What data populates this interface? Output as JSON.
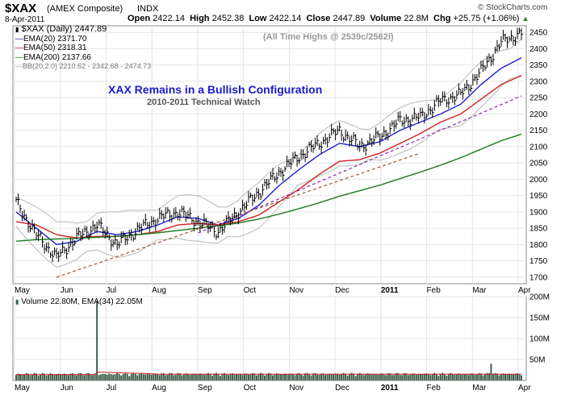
{
  "header": {
    "symbol": "$XAX",
    "name": "(AMEX Composite)",
    "exchange": "INDX",
    "date": "8-Apr-2011",
    "open_label": "Open",
    "open": "2422.14",
    "high_label": "High",
    "high": "2452.38",
    "low_label": "Low",
    "low": "2422.14",
    "close_label": "Close",
    "close": "2447.89",
    "volume_label": "Volume",
    "volume": "22.8M",
    "chg_label": "Chg",
    "chg": "+25.75 (+1.06%)",
    "watermark": "© StockCharts.com"
  },
  "legend": [
    {
      "text": "$XAX (Daily) 2447.89",
      "color": "#000000"
    },
    {
      "text": "EMA(20) 2371.70",
      "color": "#1f1fd0"
    },
    {
      "text": "EMA(50) 2318.31",
      "color": "#d01f1f"
    },
    {
      "text": "EMA(200) 2137.66",
      "color": "#1a7a1a"
    },
    {
      "text": "BB(20,2.0) 2210.62 - 2342.68 - 2474.73",
      "color": "#999999"
    }
  ],
  "annotations": {
    "ath": "(All Time Highs @ 2539c/2562i)",
    "title": "XAX Remains in a Bullish Configuration",
    "subtitle": "2010-2011 Technical Watch"
  },
  "volume_legend": "Volume 22.80M, EMA(34) 22.05M",
  "colors": {
    "ema20": "#1f1fd0",
    "ema50": "#d01f1f",
    "ema200": "#1a7a1a",
    "bb": "#b8b8b8",
    "price": "#000000",
    "trend_purple": "#8a2aa8",
    "trend_brown": "#a05a3a",
    "title_blue": "#1a1acc",
    "volume_bar": "#3f5f4f"
  },
  "chart_data": [
    {
      "type": "line",
      "title": "$XAX (Daily)",
      "x_labels": [
        "May",
        "Jun",
        "Jul",
        "Aug",
        "Sep",
        "Oct",
        "Nov",
        "Dec",
        "2011",
        "Feb",
        "Mar",
        "Apr"
      ],
      "y_ticks": [
        1700,
        1750,
        1800,
        1850,
        1900,
        1950,
        2000,
        2050,
        2100,
        2150,
        2200,
        2250,
        2300,
        2350,
        2400,
        2450
      ],
      "ylim": [
        1680,
        2470
      ],
      "x": [
        0,
        10,
        20,
        30,
        40,
        50,
        60,
        70,
        80,
        90,
        100,
        110,
        120,
        130,
        140,
        150,
        160,
        170,
        180,
        190,
        200,
        210,
        220,
        230,
        240,
        250
      ],
      "series": [
        {
          "name": "$XAX (Daily)",
          "values": [
            1930,
            1830,
            1760,
            1820,
            1860,
            1800,
            1845,
            1880,
            1900,
            1870,
            1840,
            1900,
            1960,
            2020,
            2070,
            2110,
            2150,
            2100,
            2130,
            2180,
            2190,
            2240,
            2260,
            2330,
            2420,
            2448
          ]
        },
        {
          "name": "EMA(20)",
          "values": [
            1900,
            1850,
            1800,
            1810,
            1840,
            1830,
            1840,
            1860,
            1885,
            1880,
            1860,
            1880,
            1920,
            1980,
            2030,
            2075,
            2110,
            2100,
            2115,
            2150,
            2175,
            2200,
            2230,
            2290,
            2340,
            2372
          ]
        },
        {
          "name": "EMA(50)",
          "values": [
            1870,
            1860,
            1830,
            1820,
            1825,
            1825,
            1830,
            1840,
            1860,
            1865,
            1860,
            1870,
            1890,
            1930,
            1970,
            2015,
            2055,
            2060,
            2080,
            2110,
            2140,
            2175,
            2200,
            2245,
            2290,
            2318
          ]
        },
        {
          "name": "EMA(200)",
          "values": [
            1810,
            1815,
            1817,
            1819,
            1822,
            1825,
            1830,
            1836,
            1843,
            1850,
            1857,
            1866,
            1878,
            1893,
            1910,
            1928,
            1948,
            1965,
            1982,
            2002,
            2022,
            2043,
            2066,
            2092,
            2118,
            2138
          ]
        }
      ],
      "trendlines": [
        {
          "name": "purple",
          "from": [
            90,
            1835
          ],
          "to": [
            250,
            2255
          ]
        },
        {
          "name": "brown",
          "from": [
            20,
            1700
          ],
          "to": [
            200,
            2080
          ]
        }
      ]
    },
    {
      "type": "bar",
      "title": "Volume",
      "y_ticks": [
        "50M",
        "100M",
        "150M",
        "200M"
      ],
      "ylim": [
        0,
        200
      ],
      "x_labels": [
        "May",
        "Jun",
        "Jul",
        "Aug",
        "Sep",
        "Oct",
        "Nov",
        "Dec",
        "2011",
        "Feb",
        "Mar",
        "Apr"
      ],
      "spike": {
        "x": 40,
        "value": 190
      }
    }
  ]
}
